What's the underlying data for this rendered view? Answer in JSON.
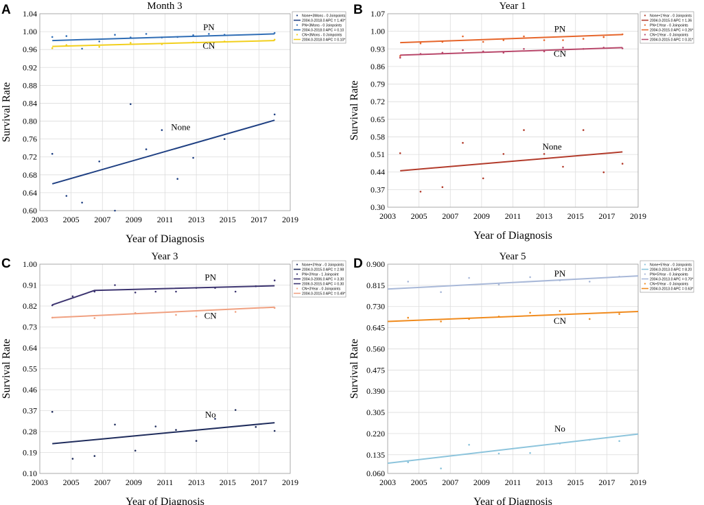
{
  "chart_data": [
    {
      "id": "A",
      "type": "line",
      "title": "Month  3",
      "xlabel": "Year of Diagnosis",
      "ylabel": "Survival Rate",
      "xlim": [
        2003,
        2019
      ],
      "ylim": [
        0.6,
        1.04
      ],
      "xticks": [
        "2003",
        "2005",
        "2007",
        "2009",
        "2011",
        "2013",
        "2015",
        "2017",
        "2019"
      ],
      "yticks": [
        "0.60",
        "0.64",
        "0.68",
        "0.72",
        "0.76",
        "0.80",
        "0.84",
        "0.88",
        "0.92",
        "0.96",
        "1.00",
        "1.04"
      ],
      "series": [
        {
          "name": "None",
          "color": "#1e3f82",
          "line": [
            [
              2003.8,
              0.66
            ],
            [
              2018,
              0.802
            ]
          ],
          "points": [
            [
              2003.8,
              0.727
            ],
            [
              2004.7,
              0.633
            ],
            [
              2005.7,
              0.618
            ],
            [
              2006.8,
              0.71
            ],
            [
              2007.8,
              0.6
            ],
            [
              2008.8,
              0.838
            ],
            [
              2009.8,
              0.737
            ],
            [
              2010.8,
              0.78
            ],
            [
              2011.8,
              0.671
            ],
            [
              2012.8,
              0.718
            ],
            [
              2014.8,
              0.76
            ],
            [
              2018,
              0.815
            ]
          ]
        },
        {
          "name": "PN",
          "color": "#2f6db5",
          "line": [
            [
              2003.8,
              0.98
            ],
            [
              2018,
              0.995
            ]
          ],
          "points": [
            [
              2003.8,
              0.988
            ],
            [
              2004.7,
              0.99
            ],
            [
              2005.7,
              0.962
            ],
            [
              2006.8,
              0.978
            ],
            [
              2007.8,
              0.993
            ],
            [
              2008.8,
              0.987
            ],
            [
              2009.8,
              0.995
            ],
            [
              2010.8,
              0.987
            ],
            [
              2011.8,
              0.988
            ],
            [
              2012.8,
              0.992
            ],
            [
              2013.8,
              0.995
            ],
            [
              2014.8,
              0.993
            ],
            [
              2018,
              0.997
            ]
          ]
        },
        {
          "name": "CN",
          "color": "#f2cf1c",
          "line": [
            [
              2003.8,
              0.967
            ],
            [
              2018,
              0.98
            ]
          ],
          "points": [
            [
              2003.8,
              0.963
            ],
            [
              2004.7,
              0.97
            ],
            [
              2006.8,
              0.966
            ],
            [
              2008.8,
              0.975
            ],
            [
              2010.8,
              0.972
            ],
            [
              2012.8,
              0.976
            ],
            [
              2014.8,
              0.978
            ],
            [
              2018,
              0.982
            ]
          ]
        }
      ],
      "annotations": [
        {
          "text": "PN",
          "x": 2013.8,
          "y": 1.003
        },
        {
          "text": "CN",
          "x": 2013.8,
          "y": 0.962
        },
        {
          "text": "None",
          "x": 2012.0,
          "y": 0.78
        }
      ],
      "legend": {
        "position": "top-right",
        "entries": [
          {
            "label": "None+3Mons - 0 Joinpoints",
            "kind": "dot",
            "color": "#1e3f82"
          },
          {
            "label": "2004.0-2018.0 APC = 1.40*",
            "kind": "line",
            "color": "#1e3f82"
          },
          {
            "label": "PN+3Mons - 0 Joinpoints",
            "kind": "dot",
            "color": "#2f6db5"
          },
          {
            "label": "2004.0-2018.0 APC = 0.10",
            "kind": "line",
            "color": "#2f6db5"
          },
          {
            "label": "CN+3Mons - 0 Joinpoints",
            "kind": "dot",
            "color": "#f2cf1c"
          },
          {
            "label": "2004.0-2018.0 APC = 0.10*",
            "kind": "line",
            "color": "#f2cf1c"
          }
        ]
      }
    },
    {
      "id": "B",
      "type": "line",
      "title": "Year 1",
      "xlabel": "Year of Diagnosis",
      "ylabel": "Survival Rate",
      "xlim": [
        2003,
        2019
      ],
      "ylim": [
        0.3,
        1.07
      ],
      "xticks": [
        "2003",
        "2005",
        "2007",
        "2009",
        "2011",
        "2013",
        "2015",
        "2017",
        "2019"
      ],
      "yticks": [
        "0.30",
        "0.37",
        "0.44",
        "0.51",
        "0.58",
        "0.65",
        "0.72",
        "0.79",
        "0.86",
        "0.93",
        "1.00",
        "1.07"
      ],
      "series": [
        {
          "name": "None",
          "color": "#b23a2a",
          "line": [
            [
              2003.8,
              0.445
            ],
            [
              2018,
              0.52
            ]
          ],
          "points": [
            [
              2003.8,
              0.515
            ],
            [
              2005.1,
              0.362
            ],
            [
              2006.5,
              0.38
            ],
            [
              2007.8,
              0.556
            ],
            [
              2009.1,
              0.415
            ],
            [
              2010.4,
              0.512
            ],
            [
              2011.7,
              0.607
            ],
            [
              2013.0,
              0.512
            ],
            [
              2014.2,
              0.461
            ],
            [
              2015.5,
              0.607
            ],
            [
              2016.8,
              0.439
            ],
            [
              2018,
              0.473
            ]
          ]
        },
        {
          "name": "PN",
          "color": "#e6652a",
          "line": [
            [
              2003.8,
              0.955
            ],
            [
              2018,
              0.987
            ]
          ],
          "points": [
            [
              2003.8,
              0.902
            ],
            [
              2005.1,
              0.952
            ],
            [
              2006.5,
              0.958
            ],
            [
              2007.8,
              0.98
            ],
            [
              2009.1,
              0.958
            ],
            [
              2010.4,
              0.965
            ],
            [
              2011.7,
              0.98
            ],
            [
              2013.0,
              0.965
            ],
            [
              2014.2,
              0.965
            ],
            [
              2015.5,
              0.97
            ],
            [
              2016.8,
              0.977
            ],
            [
              2018,
              0.988
            ]
          ]
        },
        {
          "name": "CN",
          "color": "#b8476a",
          "line": [
            [
              2003.8,
              0.905
            ],
            [
              2018,
              0.935
            ]
          ],
          "points": [
            [
              2003.8,
              0.895
            ],
            [
              2005.1,
              0.91
            ],
            [
              2006.5,
              0.915
            ],
            [
              2007.8,
              0.925
            ],
            [
              2009.1,
              0.92
            ],
            [
              2010.4,
              0.915
            ],
            [
              2011.7,
              0.93
            ],
            [
              2013.0,
              0.92
            ],
            [
              2014.2,
              0.935
            ],
            [
              2015.5,
              0.93
            ],
            [
              2016.8,
              0.935
            ],
            [
              2018,
              0.932
            ]
          ]
        }
      ],
      "annotations": [
        {
          "text": "PN",
          "x": 2014.0,
          "y": 0.998
        },
        {
          "text": "CN",
          "x": 2014.0,
          "y": 0.9
        },
        {
          "text": "None",
          "x": 2013.5,
          "y": 0.53
        }
      ],
      "legend": {
        "position": "top-right",
        "entries": [
          {
            "label": "None+1Year - 0 Joinpoints",
            "kind": "dot",
            "color": "#b23a2a"
          },
          {
            "label": "2004.0-2015.0 APC = 1.36",
            "kind": "line",
            "color": "#b23a2a"
          },
          {
            "label": "PN+1Year - 0 Joinpoints",
            "kind": "dot",
            "color": "#e6652a"
          },
          {
            "label": "2004.0-2015.0 APC = 0.26*",
            "kind": "line",
            "color": "#e6652a"
          },
          {
            "label": "CN+1Year - 0 Joinpoints",
            "kind": "dot",
            "color": "#b8476a"
          },
          {
            "label": "2004.0-2015.0 APC = 0.31*",
            "kind": "line",
            "color": "#b8476a"
          }
        ]
      }
    },
    {
      "id": "C",
      "type": "line",
      "title": "Year 3",
      "xlabel": "Year of Diagnosis",
      "ylabel": "Survival Rate",
      "xlim": [
        2003,
        2019
      ],
      "ylim": [
        0.1,
        1.0
      ],
      "xticks": [
        "2003",
        "2005",
        "2007",
        "2009",
        "2011",
        "2013",
        "2015",
        "2017",
        "2019"
      ],
      "yticks": [
        "0.10",
        "0.19",
        "0.28",
        "0.37",
        "0.46",
        "0.55",
        "0.64",
        "0.73",
        "0.82",
        "0.91",
        "1.00"
      ],
      "series": [
        {
          "name": "No",
          "color": "#1f2c5c",
          "line": [
            [
              2003.8,
              0.228
            ],
            [
              2018,
              0.318
            ]
          ],
          "points": [
            [
              2003.8,
              0.365
            ],
            [
              2005.1,
              0.163
            ],
            [
              2006.5,
              0.175
            ],
            [
              2007.8,
              0.31
            ],
            [
              2009.1,
              0.198
            ],
            [
              2010.4,
              0.302
            ],
            [
              2011.7,
              0.287
            ],
            [
              2013.0,
              0.24
            ],
            [
              2014.2,
              0.335
            ],
            [
              2015.5,
              0.373
            ],
            [
              2016.8,
              0.3
            ],
            [
              2018,
              0.283
            ]
          ]
        },
        {
          "name": "PN",
          "color": "#3c3470",
          "line": [
            [
              2003.8,
              0.825
            ],
            [
              2006.5,
              0.887
            ],
            [
              2018,
              0.907
            ]
          ],
          "points": [
            [
              2003.8,
              0.823
            ],
            [
              2005.1,
              0.862
            ],
            [
              2006.5,
              0.882
            ],
            [
              2007.8,
              0.91
            ],
            [
              2009.1,
              0.878
            ],
            [
              2010.4,
              0.882
            ],
            [
              2011.7,
              0.882
            ],
            [
              2013.0,
              0.898
            ],
            [
              2014.2,
              0.898
            ],
            [
              2015.5,
              0.882
            ],
            [
              2016.8,
              0.905
            ],
            [
              2018,
              0.93
            ]
          ]
        },
        {
          "name": "CN",
          "color": "#f0a080",
          "line": [
            [
              2003.8,
              0.77
            ],
            [
              2018,
              0.815
            ]
          ],
          "points": [
            [
              2003.8,
              0.77
            ],
            [
              2006.5,
              0.768
            ],
            [
              2009.1,
              0.79
            ],
            [
              2011.7,
              0.782
            ],
            [
              2013.0,
              0.775
            ],
            [
              2015.5,
              0.795
            ],
            [
              2018,
              0.812
            ]
          ]
        }
      ],
      "annotations": [
        {
          "text": "PN",
          "x": 2013.9,
          "y": 0.93
        },
        {
          "text": "CN",
          "x": 2013.9,
          "y": 0.765
        },
        {
          "text": "No",
          "x": 2013.9,
          "y": 0.34
        }
      ],
      "legend": {
        "position": "top-right",
        "entries": [
          {
            "label": "None+3Year - 0 Joinpoints",
            "kind": "dot",
            "color": "#1f2c5c"
          },
          {
            "label": "2004.0-2015.0 APC = 2.98",
            "kind": "line",
            "color": "#1f2c5c"
          },
          {
            "label": "PN+3Year - 1 Joinpoint",
            "kind": "dot",
            "color": "#3c3470"
          },
          {
            "label": "2004.0-2006.0 APC = 3.30",
            "kind": "line",
            "color": "#3c3470"
          },
          {
            "label": "2006.0-2015.0 APC = 0.30",
            "kind": "line",
            "color": "#3c3470"
          },
          {
            "label": "CN+3Year - 0 Joinpoints",
            "kind": "dot",
            "color": "#f0a080"
          },
          {
            "label": "2004.0-2015.0 APC = 0.49*",
            "kind": "line",
            "color": "#f0a080"
          }
        ]
      }
    },
    {
      "id": "D",
      "type": "line",
      "title": "Year 5",
      "xlabel": "Year of Diagnosis",
      "ylabel": "Survival Rate",
      "xlim": [
        2003,
        2019
      ],
      "ylim": [
        0.06,
        0.9
      ],
      "xticks": [
        "2003",
        "2005",
        "2007",
        "2009",
        "2011",
        "2013",
        "2015",
        "2017",
        "2019"
      ],
      "yticks": [
        "0.060",
        "0.135",
        "0.220",
        "0.305",
        "0.390",
        "0.475",
        "0.560",
        "0.645",
        "0.730",
        "0.815",
        "0.900"
      ],
      "series": [
        {
          "name": "No",
          "color": "#8cc4dc",
          "line": [
            [
              2003,
              0.101
            ],
            [
              2019,
              0.218
            ]
          ],
          "points": [
            [
              2004.3,
              0.105
            ],
            [
              2006.4,
              0.08
            ],
            [
              2008.2,
              0.175
            ],
            [
              2010.1,
              0.14
            ],
            [
              2012.1,
              0.142
            ],
            [
              2014.0,
              0.18
            ],
            [
              2015.9,
              0.195
            ],
            [
              2017.8,
              0.19
            ]
          ]
        },
        {
          "name": "PN",
          "color": "#a8b8d8",
          "line": [
            [
              2003,
              0.8
            ],
            [
              2019,
              0.853
            ]
          ],
          "points": [
            [
              2004.3,
              0.83
            ],
            [
              2006.4,
              0.788
            ],
            [
              2008.2,
              0.845
            ],
            [
              2010.1,
              0.818
            ],
            [
              2012.1,
              0.848
            ],
            [
              2014.0,
              0.835
            ],
            [
              2015.9,
              0.83
            ],
            [
              2017.8,
              0.85
            ]
          ]
        },
        {
          "name": "CN",
          "color": "#f08a1c",
          "line": [
            [
              2003,
              0.67
            ],
            [
              2019,
              0.71
            ]
          ],
          "points": [
            [
              2004.3,
              0.685
            ],
            [
              2006.4,
              0.67
            ],
            [
              2008.2,
              0.68
            ],
            [
              2010.1,
              0.69
            ],
            [
              2012.1,
              0.705
            ],
            [
              2014.0,
              0.712
            ],
            [
              2015.9,
              0.68
            ],
            [
              2017.8,
              0.7
            ]
          ]
        }
      ],
      "annotations": [
        {
          "text": "PN",
          "x": 2014.0,
          "y": 0.85
        },
        {
          "text": "CN",
          "x": 2014.0,
          "y": 0.66
        },
        {
          "text": "No",
          "x": 2014.0,
          "y": 0.228
        }
      ],
      "legend": {
        "position": "top-right",
        "entries": [
          {
            "label": "None+5Year - 0 Joinpoints",
            "kind": "dot",
            "color": "#8cc4dc"
          },
          {
            "label": "2004.0-2013.0 APC = 8.20",
            "kind": "line",
            "color": "#8cc4dc"
          },
          {
            "label": "PN+5Year - 0 Joinpoints",
            "kind": "dot",
            "color": "#a8b8d8"
          },
          {
            "label": "2004.0-2013.0 APC = 0.70*",
            "kind": "line",
            "color": "#a8b8d8"
          },
          {
            "label": "CN+5Year - 0 Joinpoints",
            "kind": "dot",
            "color": "#f08a1c"
          },
          {
            "label": "2004.0-2013.0 APC = 0.63*",
            "kind": "line",
            "color": "#f08a1c"
          }
        ]
      }
    }
  ]
}
